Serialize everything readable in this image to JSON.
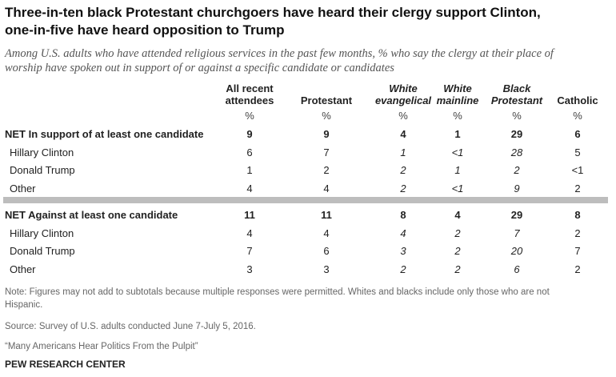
{
  "title_line1": "Three-in-ten black Protestant churchgoers have heard their clergy support Clinton,",
  "title_line2": "one-in-five have heard opposition to Trump",
  "subtitle_line1": "Among U.S. adults who have attended religious services in the past few months, % who say the clergy at their place of",
  "subtitle_line2": "worship have spoken out in support of or against a specific candidate or candidates",
  "pct_symbol": "%",
  "chart_data": {
    "type": "table",
    "columns": [
      {
        "line1": "All recent",
        "line2": "attendees",
        "italic": false
      },
      {
        "line1": "",
        "line2": "Protestant",
        "italic": false
      },
      {
        "line1": "White",
        "line2": "evangelical",
        "italic": true
      },
      {
        "line1": "White",
        "line2": "mainline",
        "italic": true
      },
      {
        "line1": "Black",
        "line2": "Protestant",
        "italic": true
      },
      {
        "line1": "",
        "line2": "Catholic",
        "italic": false
      }
    ],
    "sections": [
      {
        "net_label": "NET In support of at least one candidate",
        "net_values": [
          "9",
          "9",
          "4",
          "1",
          "29",
          "6"
        ],
        "rows": [
          {
            "label": "Hillary Clinton",
            "values": [
              "6",
              "7",
              "1",
              "<1",
              "28",
              "5"
            ]
          },
          {
            "label": "Donald Trump",
            "values": [
              "1",
              "2",
              "2",
              "1",
              "2",
              "<1"
            ]
          },
          {
            "label": "Other",
            "values": [
              "4",
              "4",
              "2",
              "<1",
              "9",
              "2"
            ]
          }
        ]
      },
      {
        "net_label": "NET Against at least one candidate",
        "net_values": [
          "11",
          "11",
          "8",
          "4",
          "29",
          "8"
        ],
        "rows": [
          {
            "label": "Hillary Clinton",
            "values": [
              "4",
              "4",
              "4",
              "2",
              "7",
              "2"
            ]
          },
          {
            "label": "Donald Trump",
            "values": [
              "7",
              "6",
              "3",
              "2",
              "20",
              "7"
            ]
          },
          {
            "label": "Other",
            "values": [
              "3",
              "3",
              "2",
              "2",
              "6",
              "2"
            ]
          }
        ]
      }
    ]
  },
  "note_line1": "Note: Figures may not add to subtotals because multiple responses were permitted. Whites and blacks include only those who are not",
  "note_line2": "Hispanic.",
  "source": "Source: Survey of U.S. adults conducted June 7-July 5, 2016.",
  "report": "“Many Americans Hear Politics From the Pulpit”",
  "brand": "PEW RESEARCH CENTER"
}
